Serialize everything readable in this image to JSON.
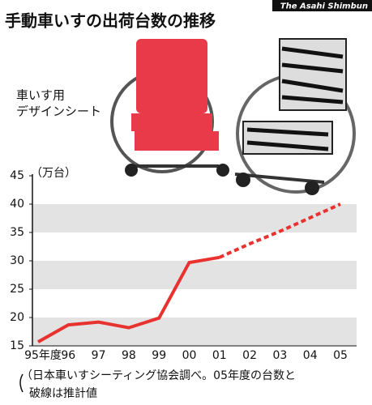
{
  "chart_data": {
    "type": "line",
    "title": "手動車いすの出荷台数の推移",
    "credit": "The Asahi Shimbun",
    "photo_caption": [
      "車いす用",
      "デザインシート"
    ],
    "y_unit": "（万台）",
    "note": [
      "（日本車いすシーティング協会調べ。05年度の台数と",
      "破線は推計値"
    ],
    "categories": [
      "95年度",
      "96",
      "97",
      "98",
      "99",
      "00",
      "01",
      "02",
      "03",
      "04",
      "05"
    ],
    "series": [
      {
        "color": "#e8322f",
        "dashed": false,
        "values": [
          15.7,
          18.7,
          19.2,
          18.2,
          19.9,
          29.7,
          30.6,
          null,
          null,
          null,
          null
        ]
      },
      {
        "color": "#e8322f",
        "dashed": true,
        "values": [
          null,
          null,
          null,
          null,
          null,
          null,
          30.6,
          33,
          35.2,
          37.6,
          40
        ]
      }
    ],
    "ylim": [
      15,
      45
    ],
    "yticks": [
      15,
      20,
      25,
      30,
      35,
      40,
      45
    ],
    "banded_grid": true
  }
}
